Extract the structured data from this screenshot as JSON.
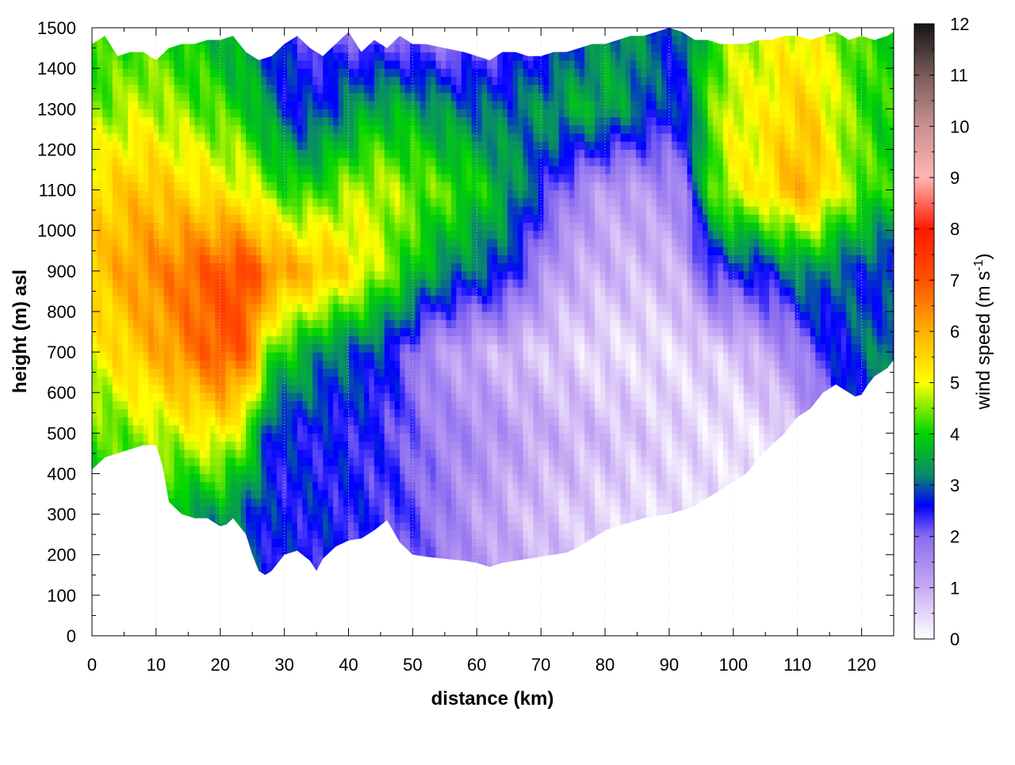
{
  "chart_data": {
    "type": "heatmap",
    "title": "",
    "xlabel": "distance (km)",
    "ylabel": "height (m) asl",
    "colorbar_label": "wind speed (m s-1)",
    "colorbar_label_parts": {
      "main": "wind speed (m s",
      "sup": "-1",
      "close": ")"
    },
    "xlim": [
      0,
      125
    ],
    "ylim": [
      0,
      1500
    ],
    "clim": [
      0,
      12
    ],
    "x_ticks": [
      "0",
      "10",
      "20",
      "30",
      "40",
      "50",
      "60",
      "70",
      "80",
      "90",
      "100",
      "110",
      "120"
    ],
    "y_ticks": [
      "0",
      "100",
      "200",
      "300",
      "400",
      "500",
      "600",
      "700",
      "800",
      "900",
      "1000",
      "1100",
      "1200",
      "1300",
      "1400",
      "1500"
    ],
    "colorbar_ticks": [
      "0",
      "1",
      "2",
      "3",
      "4",
      "5",
      "6",
      "7",
      "8",
      "9",
      "10",
      "11",
      "12"
    ],
    "grid": true,
    "colormap": [
      {
        "value": 0,
        "color": "#ffffff"
      },
      {
        "value": 1,
        "color": "#c8aaf4"
      },
      {
        "value": 2,
        "color": "#8a6cf0"
      },
      {
        "value": 2.6,
        "color": "#0000ff"
      },
      {
        "value": 3.2,
        "color": "#0a8a6a"
      },
      {
        "value": 4,
        "color": "#00d400"
      },
      {
        "value": 5,
        "color": "#ffff00"
      },
      {
        "value": 6,
        "color": "#ffb000"
      },
      {
        "value": 7,
        "color": "#ff5000"
      },
      {
        "value": 8,
        "color": "#ff1a00"
      },
      {
        "value": 9,
        "color": "#ffb4b4"
      },
      {
        "value": 10,
        "color": "#c89090"
      },
      {
        "value": 11,
        "color": "#7a5a5a"
      },
      {
        "value": 12,
        "color": "#141414"
      }
    ],
    "terrain_x": [
      0,
      2,
      4,
      6,
      8,
      10,
      11,
      12,
      14,
      16,
      18,
      20,
      21,
      22,
      24,
      25,
      26,
      27,
      28,
      30,
      32,
      34,
      35,
      36,
      38,
      40,
      42,
      44,
      46,
      48,
      50,
      52,
      55,
      58,
      60,
      62,
      64,
      66,
      68,
      70,
      72,
      74,
      76,
      78,
      80,
      82,
      84,
      86,
      88,
      90,
      92,
      94,
      96,
      98,
      100,
      102,
      104,
      106,
      108,
      110,
      112,
      113,
      114,
      116,
      118,
      119,
      120,
      121,
      122,
      124,
      125
    ],
    "terrain_h": [
      410,
      440,
      450,
      460,
      470,
      470,
      420,
      330,
      300,
      290,
      290,
      270,
      275,
      290,
      250,
      200,
      160,
      150,
      160,
      200,
      210,
      185,
      160,
      190,
      220,
      235,
      240,
      260,
      285,
      230,
      200,
      195,
      190,
      185,
      180,
      170,
      180,
      185,
      190,
      195,
      200,
      205,
      220,
      240,
      260,
      270,
      280,
      290,
      295,
      300,
      310,
      320,
      340,
      360,
      380,
      400,
      440,
      470,
      500,
      540,
      560,
      580,
      600,
      620,
      600,
      590,
      595,
      620,
      640,
      660,
      680
    ],
    "top_x": [
      0,
      2,
      4,
      6,
      8,
      10,
      12,
      14,
      16,
      18,
      20,
      22,
      24,
      26,
      28,
      30,
      32,
      34,
      36,
      38,
      40,
      42,
      44,
      46,
      48,
      50,
      52,
      55,
      58,
      60,
      62,
      64,
      66,
      68,
      70,
      72,
      74,
      76,
      78,
      80,
      82,
      84,
      86,
      88,
      90,
      92,
      94,
      96,
      98,
      100,
      102,
      104,
      106,
      108,
      110,
      112,
      114,
      116,
      118,
      120,
      122,
      124,
      125
    ],
    "top_h": [
      1460,
      1480,
      1430,
      1440,
      1440,
      1420,
      1450,
      1460,
      1460,
      1470,
      1470,
      1480,
      1440,
      1420,
      1430,
      1460,
      1480,
      1450,
      1430,
      1460,
      1490,
      1440,
      1470,
      1450,
      1480,
      1460,
      1460,
      1450,
      1440,
      1430,
      1420,
      1440,
      1440,
      1430,
      1430,
      1440,
      1440,
      1450,
      1460,
      1460,
      1470,
      1480,
      1480,
      1490,
      1500,
      1490,
      1470,
      1470,
      1460,
      1460,
      1460,
      1470,
      1470,
      1480,
      1480,
      1470,
      1480,
      1490,
      1470,
      1480,
      1470,
      1480,
      1490
    ],
    "wind_speed_grid": {
      "x": [
        0,
        4,
        8,
        12,
        16,
        20,
        24,
        28,
        32,
        36,
        40,
        44,
        48,
        52,
        56,
        60,
        64,
        68,
        72,
        76,
        80,
        84,
        88,
        92,
        96,
        100,
        104,
        108,
        112,
        116,
        120,
        124
      ],
      "z": [
        0,
        300,
        500,
        700,
        900,
        1100,
        1300,
        1500
      ],
      "values": [
        [
          3.5,
          3.5,
          3.5,
          3.2,
          3.0,
          2.8,
          2.6,
          2.5,
          2.4,
          2.4,
          2.3,
          2.2,
          2.1,
          2.0,
          1.8,
          1.6,
          1.4,
          1.2,
          1.0,
          0.8,
          0.6,
          0.5,
          0.4,
          0.4,
          0.4,
          0.4,
          0.5,
          0.6,
          1.0,
          1.5,
          2.0,
          2.5
        ],
        [
          3.8,
          3.9,
          4.0,
          3.6,
          3.4,
          3.4,
          3.0,
          2.6,
          2.6,
          2.6,
          2.5,
          2.4,
          2.3,
          2.0,
          1.6,
          1.2,
          1.0,
          0.8,
          0.7,
          0.6,
          0.5,
          0.4,
          0.4,
          0.4,
          0.4,
          0.4,
          0.4,
          0.6,
          1.2,
          1.8,
          2.4,
          2.8
        ],
        [
          4.2,
          4.4,
          4.6,
          4.8,
          5.0,
          5.2,
          4.5,
          2.6,
          2.6,
          2.5,
          2.5,
          2.4,
          2.2,
          1.8,
          1.6,
          1.5,
          1.3,
          1.1,
          1.0,
          0.9,
          0.8,
          0.7,
          0.6,
          0.5,
          0.4,
          0.3,
          0.3,
          0.5,
          1.2,
          2.0,
          2.6,
          3.0
        ],
        [
          5.0,
          5.4,
          5.8,
          6.2,
          6.6,
          7.0,
          6.8,
          4.2,
          3.8,
          3.2,
          3.0,
          2.8,
          2.4,
          1.5,
          1.2,
          1.0,
          0.8,
          0.7,
          0.6,
          0.5,
          0.4,
          0.4,
          0.4,
          0.4,
          0.6,
          0.6,
          1.0,
          1.4,
          2.0,
          2.6,
          3.0,
          3.2
        ],
        [
          5.6,
          6.0,
          6.3,
          6.5,
          6.8,
          7.0,
          7.2,
          6.4,
          6.0,
          5.8,
          5.4,
          4.8,
          4.2,
          3.6,
          3.2,
          3.0,
          2.8,
          2.0,
          1.2,
          1.0,
          0.9,
          0.8,
          0.8,
          1.0,
          2.2,
          2.6,
          2.6,
          3.0,
          3.4,
          3.0,
          2.8,
          2.6
        ],
        [
          5.4,
          5.6,
          5.8,
          5.6,
          5.4,
          5.2,
          5.0,
          4.4,
          4.0,
          4.2,
          4.6,
          4.8,
          4.6,
          4.4,
          4.3,
          4.0,
          3.6,
          3.0,
          2.2,
          1.6,
          1.2,
          1.2,
          1.4,
          1.6,
          4.0,
          5.0,
          5.2,
          5.8,
          6.0,
          5.0,
          4.4,
          4.0
        ],
        [
          4.4,
          4.6,
          4.8,
          4.6,
          4.4,
          4.2,
          4.0,
          3.2,
          2.6,
          2.8,
          3.2,
          3.6,
          3.6,
          3.4,
          3.2,
          3.0,
          3.0,
          3.2,
          3.4,
          3.6,
          3.6,
          3.2,
          2.8,
          2.6,
          4.2,
          5.0,
          5.0,
          5.4,
          5.6,
          4.8,
          4.2,
          4.0
        ],
        [
          4.0,
          4.0,
          4.2,
          4.0,
          3.8,
          3.6,
          3.2,
          2.6,
          2.4,
          2.2,
          2.0,
          1.8,
          1.8,
          1.6,
          1.6,
          1.8,
          2.0,
          2.2,
          2.4,
          2.8,
          3.2,
          3.4,
          3.0,
          2.8,
          4.0,
          4.6,
          4.8,
          5.0,
          5.0,
          4.6,
          4.2,
          4.0
        ]
      ]
    }
  }
}
